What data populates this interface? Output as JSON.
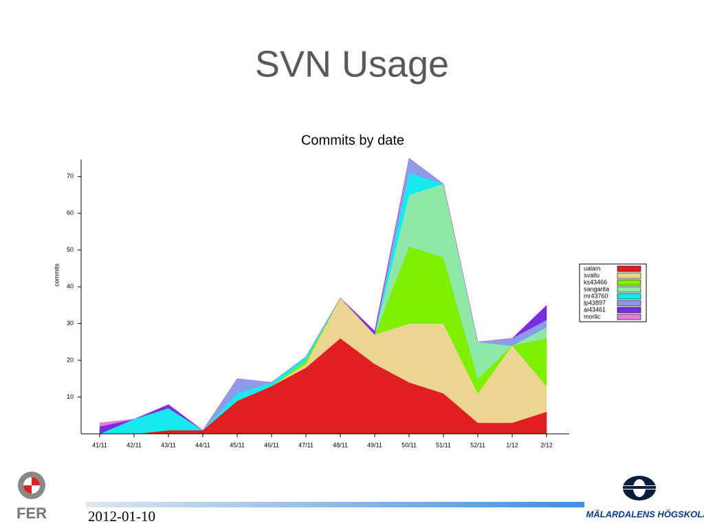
{
  "title": "SVN Usage",
  "chart_data": {
    "type": "stacked-area",
    "title": "Commits by date",
    "y_label": "commits",
    "categories": [
      "41/11",
      "42/11",
      "43/11",
      "44/11",
      "45/11",
      "46/11",
      "47/11",
      "48/11",
      "49/11",
      "50/11",
      "51/11",
      "52/11",
      "1/12",
      "2/12"
    ],
    "series": [
      {
        "name": "ualam",
        "color": "#e02020",
        "values": [
          0,
          0,
          1,
          1,
          9,
          13,
          18,
          26,
          19,
          14,
          11,
          3,
          3,
          6
        ]
      },
      {
        "name": "svallu",
        "color": "#ecd591",
        "values": [
          0,
          0,
          0,
          0,
          0,
          0,
          1,
          11,
          8,
          16,
          19,
          8,
          21,
          7
        ]
      },
      {
        "name": "ks43466",
        "color": "#7cf000",
        "values": [
          0,
          0,
          0,
          0,
          0,
          0,
          1,
          0,
          0,
          21,
          18,
          4,
          0,
          13
        ]
      },
      {
        "name": "sangarita",
        "color": "#8ee8a8",
        "values": [
          0,
          0,
          0,
          0,
          0,
          0,
          0,
          0,
          0,
          14,
          20,
          10,
          0,
          3
        ]
      },
      {
        "name": "mr43760",
        "color": "#18e8f0",
        "values": [
          0,
          4,
          6,
          0,
          2,
          1,
          1,
          0,
          0,
          6,
          0,
          0,
          0,
          0
        ]
      },
      {
        "name": "lp43897",
        "color": "#8c9ce8",
        "values": [
          0,
          0,
          0,
          0,
          4,
          0,
          0,
          0,
          0,
          4,
          0,
          0,
          2,
          2
        ]
      },
      {
        "name": "ai43461",
        "color": "#7a2ce0",
        "values": [
          2,
          0,
          1,
          0,
          0,
          0,
          0,
          0,
          1,
          0,
          0,
          0,
          0,
          4
        ]
      },
      {
        "name": "morlic",
        "color": "#e080d8",
        "values": [
          1,
          0,
          0,
          0,
          0,
          0,
          0,
          0,
          0,
          0,
          0,
          0,
          0,
          0
        ]
      }
    ],
    "ylim": [
      0,
      75
    ],
    "yticks": [
      10,
      20,
      30,
      40,
      50,
      60,
      70
    ],
    "legend": "right"
  },
  "footer": {
    "date": "2012-01-10",
    "left_logo": "FER",
    "right_logo": "MÄLARDALENS HÖGSKOLA"
  }
}
